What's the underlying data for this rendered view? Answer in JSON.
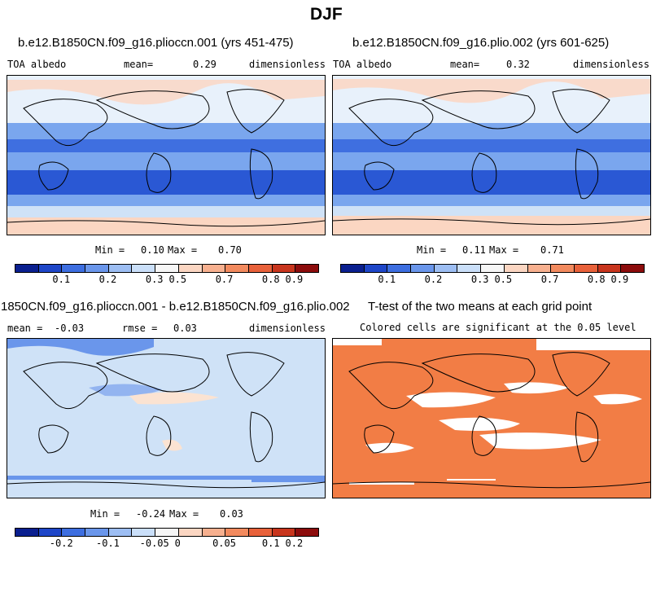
{
  "figure": {
    "title": "DJF"
  },
  "panels": [
    {
      "title": "b.e12.B1850CN.f09_g16.plioccn.001 (yrs 451-475)",
      "left_label": "TOA albedo",
      "mean_label": "mean=",
      "mean_value": "0.29",
      "right_label": "dimensionless",
      "min_label": "Min =",
      "min_value": "0.10",
      "max_label": "Max =",
      "max_value": "0.70"
    },
    {
      "title": "b.e12.B1850CN.f09_g16.plio.002 (yrs 601-625)",
      "left_label": "TOA albedo",
      "mean_label": "mean=",
      "mean_value": "0.32",
      "right_label": "dimensionless",
      "min_label": "Min =",
      "min_value": "0.11",
      "max_label": "Max =",
      "max_value": "0.71"
    },
    {
      "title": "1850CN.f09_g16.plioccn.001 - b.e12.B1850CN.f09_g16.plio.002",
      "mean_label": "mean =",
      "mean_value": "-0.03",
      "rmse_label": "rmse =",
      "rmse_value": "0.03",
      "right_label": "dimensionless",
      "min_label": "Min =",
      "min_value": "-0.24",
      "max_label": "Max =",
      "max_value": "0.03"
    },
    {
      "title": "T-test of the two means at each grid point",
      "subtitle": "Colored cells are significant at the 0.05 level"
    }
  ],
  "colorbars": {
    "colors": [
      "#0a1f8f",
      "#1e46c8",
      "#3d6ee0",
      "#6a96eb",
      "#9dbef3",
      "#cadff9",
      "#f6f6f6",
      "#fbd6c2",
      "#f7b08f",
      "#f28a5e",
      "#e8613a",
      "#c8351d",
      "#8c0c0c"
    ],
    "albedo_ticks": [
      "0.1",
      "0.2",
      "0.3",
      "0.5",
      "0.7",
      "0.8",
      "0.9"
    ],
    "diff_ticks": [
      "-0.2",
      "-0.1",
      "-0.05",
      "0",
      "0.05",
      "0.1",
      "0.2"
    ]
  },
  "map_colors": {
    "ocean_light": "#cfe2f7",
    "band_mid": "#7aa6ee",
    "band_dark": "#3f6fe0",
    "band_darker": "#2a58d4",
    "ice": "#fbd6c2",
    "diff_base": "#cfe2f7",
    "diff_band": "#6a96eb",
    "diff_warm": "#fbe3d2",
    "sig_color": "#f27d45",
    "sig_white": "#ffffff"
  }
}
